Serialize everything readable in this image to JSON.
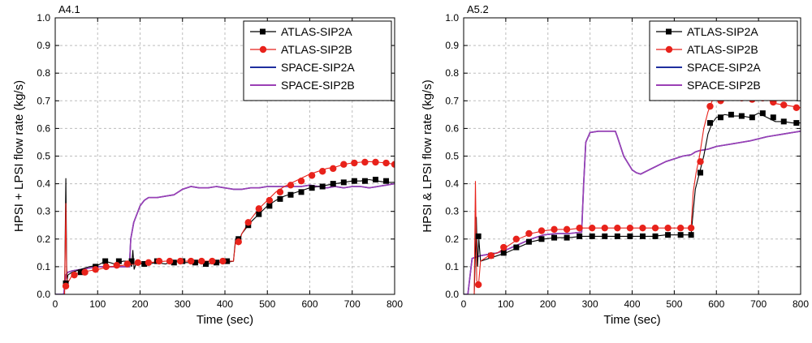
{
  "chart_data": [
    {
      "type": "line",
      "title": "A4.1",
      "xlabel": "Time (sec)",
      "ylabel": "HPSI + LPSI flow rate (kg/s)",
      "xlim": [
        0,
        800
      ],
      "ylim": [
        0,
        1.0
      ],
      "x_ticks": [
        "0",
        "100",
        "200",
        "300",
        "400",
        "500",
        "600",
        "700",
        "800"
      ],
      "y_ticks": [
        "0.0",
        "0.1",
        "0.2",
        "0.3",
        "0.4",
        "0.5",
        "0.6",
        "0.7",
        "0.8",
        "0.9",
        "1.0"
      ],
      "grid": true,
      "legend_position": "top-right",
      "series": [
        {
          "name": "ATLAS-SIP2A",
          "color": "#000000",
          "marker": "square",
          "x": [
            0,
            22,
            25,
            27,
            28,
            30,
            40,
            60,
            80,
            100,
            118,
            140,
            160,
            175,
            180,
            183,
            186,
            190,
            200,
            220,
            240,
            260,
            280,
            300,
            320,
            340,
            360,
            380,
            400,
            420,
            425,
            432,
            440,
            460,
            480,
            500,
            520,
            540,
            560,
            580,
            600,
            620,
            640,
            660,
            680,
            700,
            720,
            740,
            760,
            780,
            800
          ],
          "y": [
            0.0,
            0.0,
            0.42,
            0.1,
            0.05,
            0.07,
            0.08,
            0.09,
            0.1,
            0.105,
            0.12,
            0.11,
            0.12,
            0.12,
            0.1,
            0.16,
            0.09,
            0.11,
            0.11,
            0.11,
            0.115,
            0.11,
            0.12,
            0.115,
            0.115,
            0.115,
            0.11,
            0.115,
            0.115,
            0.12,
            0.2,
            0.19,
            0.22,
            0.26,
            0.29,
            0.32,
            0.34,
            0.355,
            0.365,
            0.375,
            0.385,
            0.39,
            0.395,
            0.4,
            0.405,
            0.41,
            0.41,
            0.415,
            0.41,
            0.405,
            0.405
          ],
          "marker_x": [
            25,
            60,
            95,
            118,
            150,
            180,
            210,
            240,
            280,
            300,
            330,
            355,
            380,
            405,
            432,
            455,
            480,
            505,
            530,
            555,
            580,
            605,
            630,
            655,
            680,
            705,
            730,
            755,
            780
          ],
          "marker_y": [
            0.04,
            0.08,
            0.1,
            0.12,
            0.12,
            0.12,
            0.11,
            0.12,
            0.115,
            0.12,
            0.115,
            0.11,
            0.115,
            0.12,
            0.2,
            0.25,
            0.29,
            0.32,
            0.345,
            0.36,
            0.37,
            0.385,
            0.39,
            0.4,
            0.405,
            0.41,
            0.41,
            0.415,
            0.41
          ]
        },
        {
          "name": "ATLAS-SIP2B",
          "color": "#e8221b",
          "marker": "circle",
          "x": [
            0,
            22,
            25,
            27,
            29,
            40,
            60,
            80,
            100,
            130,
            160,
            190,
            220,
            260,
            300,
            340,
            380,
            420,
            425,
            432,
            440,
            460,
            480,
            500,
            520,
            540,
            560,
            580,
            600,
            620,
            640,
            660,
            680,
            700,
            720,
            740,
            760,
            780,
            800
          ],
          "y": [
            0.0,
            0.0,
            0.33,
            0.06,
            0.04,
            0.07,
            0.08,
            0.085,
            0.09,
            0.1,
            0.105,
            0.11,
            0.115,
            0.12,
            0.12,
            0.12,
            0.12,
            0.12,
            0.19,
            0.18,
            0.22,
            0.27,
            0.31,
            0.34,
            0.37,
            0.39,
            0.405,
            0.42,
            0.435,
            0.445,
            0.455,
            0.46,
            0.47,
            0.475,
            0.478,
            0.48,
            0.478,
            0.475,
            0.47
          ],
          "marker_x": [
            25,
            45,
            70,
            95,
            120,
            145,
            170,
            195,
            220,
            245,
            270,
            295,
            320,
            345,
            370,
            395,
            432,
            455,
            480,
            505,
            530,
            555,
            580,
            605,
            630,
            655,
            680,
            705,
            730,
            755,
            780,
            800
          ],
          "marker_y": [
            0.03,
            0.07,
            0.08,
            0.09,
            0.1,
            0.105,
            0.11,
            0.115,
            0.115,
            0.12,
            0.12,
            0.12,
            0.12,
            0.12,
            0.12,
            0.12,
            0.19,
            0.26,
            0.31,
            0.34,
            0.37,
            0.395,
            0.41,
            0.43,
            0.445,
            0.455,
            0.47,
            0.475,
            0.478,
            0.478,
            0.475,
            0.47
          ]
        },
        {
          "name": "SPACE-SIP2A",
          "color": "#1f2f9e",
          "marker": "none",
          "x": [
            0,
            20,
            25,
            30,
            40,
            60,
            80,
            100,
            120,
            140,
            160,
            175,
            178,
            185,
            200,
            210,
            220,
            240,
            260,
            280,
            300,
            320,
            340,
            360,
            380,
            400,
            420,
            440,
            460,
            480,
            500,
            520,
            540,
            560,
            580,
            600,
            620,
            640,
            660,
            680,
            700,
            720,
            740,
            760,
            780,
            800
          ],
          "y": [
            0.0,
            0.0,
            0.07,
            0.08,
            0.085,
            0.09,
            0.095,
            0.1,
            0.1,
            0.1,
            0.1,
            0.1,
            0.2,
            0.26,
            0.32,
            0.34,
            0.35,
            0.35,
            0.355,
            0.36,
            0.38,
            0.39,
            0.385,
            0.385,
            0.39,
            0.385,
            0.38,
            0.38,
            0.385,
            0.385,
            0.39,
            0.39,
            0.39,
            0.39,
            0.39,
            0.395,
            0.39,
            0.385,
            0.39,
            0.385,
            0.39,
            0.39,
            0.385,
            0.39,
            0.395,
            0.4
          ]
        },
        {
          "name": "SPACE-SIP2B",
          "color": "#9b3fb5",
          "marker": "none",
          "x": [
            0,
            20,
            25,
            30,
            40,
            60,
            80,
            100,
            120,
            140,
            160,
            175,
            178,
            185,
            200,
            210,
            220,
            240,
            260,
            280,
            300,
            320,
            340,
            360,
            380,
            400,
            420,
            440,
            460,
            480,
            500,
            520,
            540,
            560,
            580,
            600,
            620,
            640,
            660,
            680,
            700,
            720,
            740,
            760,
            780,
            800
          ],
          "y": [
            0.0,
            0.0,
            0.07,
            0.08,
            0.085,
            0.09,
            0.095,
            0.1,
            0.1,
            0.1,
            0.1,
            0.1,
            0.2,
            0.26,
            0.32,
            0.34,
            0.35,
            0.35,
            0.355,
            0.36,
            0.38,
            0.39,
            0.385,
            0.385,
            0.39,
            0.385,
            0.38,
            0.38,
            0.385,
            0.385,
            0.39,
            0.39,
            0.39,
            0.39,
            0.39,
            0.395,
            0.39,
            0.385,
            0.39,
            0.385,
            0.39,
            0.39,
            0.385,
            0.39,
            0.395,
            0.4
          ]
        }
      ]
    },
    {
      "type": "line",
      "title": "A5.2",
      "xlabel": "Time (sec)",
      "ylabel": "HPSI & LPSI flow rate (kg/s)",
      "xlim": [
        0,
        800
      ],
      "ylim": [
        0,
        1.0
      ],
      "x_ticks": [
        "0",
        "100",
        "200",
        "300",
        "400",
        "500",
        "600",
        "700",
        "800"
      ],
      "y_ticks": [
        "0.0",
        "0.1",
        "0.2",
        "0.3",
        "0.4",
        "0.5",
        "0.6",
        "0.7",
        "0.8",
        "0.9",
        "1.0"
      ],
      "grid": true,
      "legend_position": "top-right",
      "series": [
        {
          "name": "ATLAS-SIP2A",
          "color": "#000000",
          "marker": "square",
          "x": [
            0,
            25,
            30,
            33,
            36,
            40,
            60,
            80,
            100,
            130,
            160,
            190,
            220,
            250,
            280,
            300,
            330,
            360,
            390,
            420,
            450,
            480,
            510,
            540,
            545,
            550,
            560,
            570,
            580,
            590,
            600,
            620,
            640,
            660,
            680,
            700,
            720,
            740,
            760,
            780,
            800
          ],
          "y": [
            0.0,
            0.0,
            0.28,
            0.1,
            0.2,
            0.12,
            0.13,
            0.14,
            0.15,
            0.17,
            0.19,
            0.2,
            0.205,
            0.205,
            0.21,
            0.21,
            0.21,
            0.21,
            0.21,
            0.21,
            0.21,
            0.215,
            0.215,
            0.215,
            0.3,
            0.38,
            0.44,
            0.5,
            0.58,
            0.62,
            0.64,
            0.65,
            0.645,
            0.645,
            0.64,
            0.655,
            0.64,
            0.625,
            0.625,
            0.62,
            0.62
          ],
          "marker_x": [
            35,
            65,
            95,
            125,
            155,
            185,
            215,
            245,
            275,
            305,
            335,
            365,
            395,
            425,
            455,
            485,
            515,
            540,
            562,
            585,
            610,
            635,
            660,
            685,
            710,
            735,
            760,
            790
          ],
          "marker_y": [
            0.21,
            0.14,
            0.15,
            0.17,
            0.19,
            0.2,
            0.205,
            0.205,
            0.21,
            0.21,
            0.21,
            0.21,
            0.21,
            0.21,
            0.21,
            0.215,
            0.215,
            0.215,
            0.44,
            0.62,
            0.64,
            0.65,
            0.645,
            0.64,
            0.655,
            0.64,
            0.625,
            0.62
          ]
        },
        {
          "name": "ATLAS-SIP2B",
          "color": "#e8221b",
          "marker": "circle",
          "x": [
            0,
            25,
            28,
            31,
            35,
            40,
            60,
            80,
            100,
            130,
            160,
            190,
            220,
            250,
            280,
            300,
            330,
            360,
            390,
            420,
            450,
            480,
            510,
            540,
            545,
            552,
            560,
            570,
            580,
            590,
            600,
            620,
            640,
            660,
            680,
            700,
            720,
            740,
            760,
            780,
            800
          ],
          "y": [
            0.0,
            0.0,
            0.41,
            0.05,
            0.03,
            0.12,
            0.14,
            0.15,
            0.17,
            0.2,
            0.22,
            0.23,
            0.235,
            0.235,
            0.24,
            0.24,
            0.24,
            0.24,
            0.24,
            0.24,
            0.24,
            0.24,
            0.24,
            0.24,
            0.37,
            0.44,
            0.5,
            0.6,
            0.66,
            0.7,
            0.71,
            0.715,
            0.71,
            0.705,
            0.705,
            0.71,
            0.705,
            0.69,
            0.685,
            0.68,
            0.675
          ],
          "marker_x": [
            35,
            65,
            95,
            125,
            155,
            185,
            215,
            245,
            275,
            305,
            335,
            365,
            395,
            425,
            455,
            485,
            515,
            540,
            562,
            585,
            610,
            635,
            660,
            685,
            710,
            735,
            760,
            790
          ],
          "marker_y": [
            0.035,
            0.14,
            0.17,
            0.2,
            0.22,
            0.23,
            0.235,
            0.235,
            0.24,
            0.24,
            0.24,
            0.24,
            0.24,
            0.24,
            0.24,
            0.24,
            0.24,
            0.24,
            0.48,
            0.68,
            0.7,
            0.715,
            0.71,
            0.705,
            0.71,
            0.695,
            0.685,
            0.675
          ]
        },
        {
          "name": "SPACE-SIP2A",
          "color": "#1f2f9e",
          "marker": "none",
          "x": [
            0,
            10,
            20,
            40,
            60,
            80,
            100,
            130,
            160,
            190,
            220,
            250,
            280,
            285,
            290,
            300,
            320,
            340,
            360,
            365,
            380,
            400,
            410,
            420,
            440,
            460,
            480,
            500,
            520,
            540,
            550,
            560,
            580,
            600,
            640,
            680,
            720,
            760,
            800
          ],
          "y": [
            0.0,
            0.0,
            0.13,
            0.14,
            0.145,
            0.15,
            0.16,
            0.18,
            0.2,
            0.215,
            0.22,
            0.22,
            0.225,
            0.4,
            0.55,
            0.585,
            0.59,
            0.59,
            0.59,
            0.57,
            0.5,
            0.45,
            0.44,
            0.435,
            0.45,
            0.465,
            0.48,
            0.49,
            0.5,
            0.505,
            0.515,
            0.52,
            0.525,
            0.535,
            0.545,
            0.555,
            0.57,
            0.58,
            0.59
          ]
        },
        {
          "name": "SPACE-SIP2B",
          "color": "#9b3fb5",
          "marker": "none",
          "x": [
            0,
            10,
            20,
            40,
            60,
            80,
            100,
            130,
            160,
            190,
            220,
            250,
            280,
            285,
            290,
            300,
            320,
            340,
            360,
            365,
            380,
            400,
            410,
            420,
            440,
            460,
            480,
            500,
            520,
            540,
            550,
            560,
            580,
            600,
            640,
            680,
            720,
            760,
            800
          ],
          "y": [
            0.0,
            0.0,
            0.13,
            0.14,
            0.145,
            0.15,
            0.16,
            0.18,
            0.2,
            0.215,
            0.22,
            0.22,
            0.225,
            0.4,
            0.55,
            0.585,
            0.59,
            0.59,
            0.59,
            0.57,
            0.5,
            0.45,
            0.44,
            0.435,
            0.45,
            0.465,
            0.48,
            0.49,
            0.5,
            0.505,
            0.515,
            0.52,
            0.525,
            0.535,
            0.545,
            0.555,
            0.57,
            0.58,
            0.59
          ]
        }
      ]
    }
  ]
}
